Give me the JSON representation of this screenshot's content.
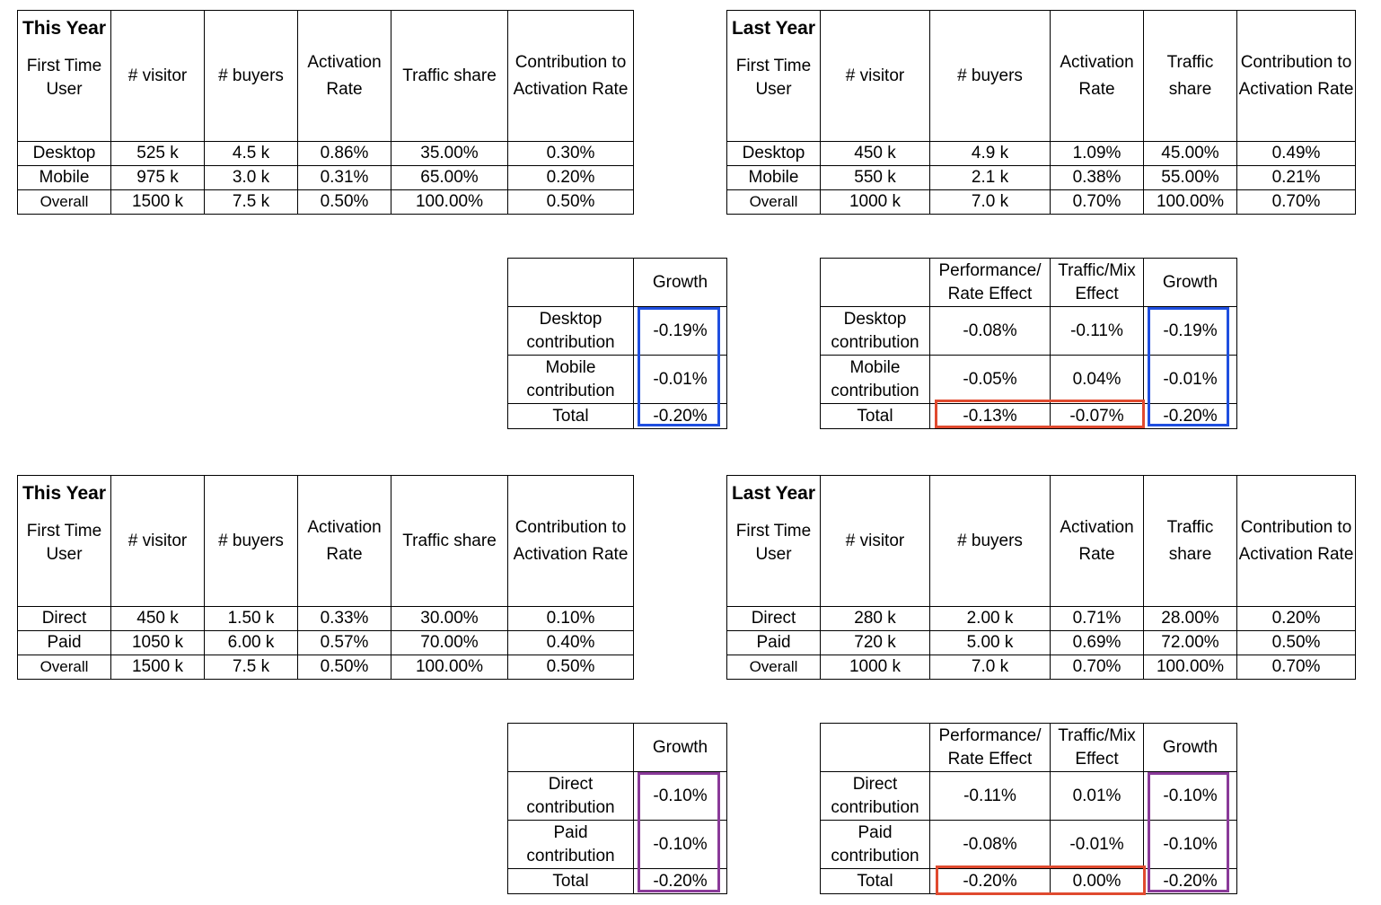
{
  "colors": {
    "blue": "#1f4fe0",
    "red": "#e04a2f",
    "purple": "#8a3a99"
  },
  "headers": {
    "visitor": "# visitor",
    "buyers": "# buyers",
    "activation": "Activation Rate",
    "traffic_share": "Traffic share",
    "contribution": "Contribution to Activation Rate",
    "growth": "Growth",
    "performance": "Performance/ Rate Effect",
    "traffic_mix": "Traffic/Mix Effect",
    "first_time_user": "First Time User"
  },
  "device": {
    "this_year": {
      "title": "This Year",
      "rows": [
        {
          "label": "Desktop",
          "visitor": "525 k",
          "buyers": "4.5 k",
          "rate": "0.86%",
          "share": "35.00%",
          "contrib": "0.30%"
        },
        {
          "label": "Mobile",
          "visitor": "975 k",
          "buyers": "3.0 k",
          "rate": "0.31%",
          "share": "65.00%",
          "contrib": "0.20%"
        },
        {
          "label": "Overall",
          "visitor": "1500 k",
          "buyers": "7.5 k",
          "rate": "0.50%",
          "share": "100.00%",
          "contrib": "0.50%"
        }
      ]
    },
    "last_year": {
      "title": "Last Year",
      "rows": [
        {
          "label": "Desktop",
          "visitor": "450 k",
          "buyers": "4.9 k",
          "rate": "1.09%",
          "share": "45.00%",
          "contrib": "0.49%"
        },
        {
          "label": "Mobile",
          "visitor": "550 k",
          "buyers": "2.1 k",
          "rate": "0.38%",
          "share": "55.00%",
          "contrib": "0.21%"
        },
        {
          "label": "Overall",
          "visitor": "1000 k",
          "buyers": "7.0 k",
          "rate": "0.70%",
          "share": "100.00%",
          "contrib": "0.70%"
        }
      ]
    },
    "growth": {
      "rows": [
        {
          "label": "Desktop contribution",
          "growth": "-0.19%"
        },
        {
          "label": "Mobile contribution",
          "growth": "-0.01%"
        },
        {
          "label": "Total",
          "growth": "-0.20%"
        }
      ]
    },
    "decomp": {
      "rows": [
        {
          "label": "Desktop contribution",
          "perf": "-0.08%",
          "mix": "-0.11%",
          "growth": "-0.19%"
        },
        {
          "label": "Mobile contribution",
          "perf": "-0.05%",
          "mix": "0.04%",
          "growth": "-0.01%"
        },
        {
          "label": "Total",
          "perf": "-0.13%",
          "mix": "-0.07%",
          "growth": "-0.20%"
        }
      ]
    }
  },
  "channel": {
    "this_year": {
      "title": "This Year",
      "rows": [
        {
          "label": "Direct",
          "visitor": "450 k",
          "buyers": "1.50 k",
          "rate": "0.33%",
          "share": "30.00%",
          "contrib": "0.10%"
        },
        {
          "label": "Paid",
          "visitor": "1050 k",
          "buyers": "6.00 k",
          "rate": "0.57%",
          "share": "70.00%",
          "contrib": "0.40%"
        },
        {
          "label": "Overall",
          "visitor": "1500 k",
          "buyers": "7.5 k",
          "rate": "0.50%",
          "share": "100.00%",
          "contrib": "0.50%"
        }
      ]
    },
    "last_year": {
      "title": "Last Year",
      "rows": [
        {
          "label": "Direct",
          "visitor": "280 k",
          "buyers": "2.00 k",
          "rate": "0.71%",
          "share": "28.00%",
          "contrib": "0.20%"
        },
        {
          "label": "Paid",
          "visitor": "720 k",
          "buyers": "5.00 k",
          "rate": "0.69%",
          "share": "72.00%",
          "contrib": "0.50%"
        },
        {
          "label": "Overall",
          "visitor": "1000 k",
          "buyers": "7.0 k",
          "rate": "0.70%",
          "share": "100.00%",
          "contrib": "0.70%"
        }
      ]
    },
    "growth": {
      "rows": [
        {
          "label": "Direct contribution",
          "growth": "-0.10%"
        },
        {
          "label": "Paid contribution",
          "growth": "-0.10%"
        },
        {
          "label": "Total",
          "growth": "-0.20%"
        }
      ]
    },
    "decomp": {
      "rows": [
        {
          "label": "Direct contribution",
          "perf": "-0.11%",
          "mix": "0.01%",
          "growth": "-0.10%"
        },
        {
          "label": "Paid contribution",
          "perf": "-0.08%",
          "mix": "-0.01%",
          "growth": "-0.10%"
        },
        {
          "label": "Total",
          "perf": "-0.20%",
          "mix": "0.00%",
          "growth": "-0.20%"
        }
      ]
    }
  }
}
